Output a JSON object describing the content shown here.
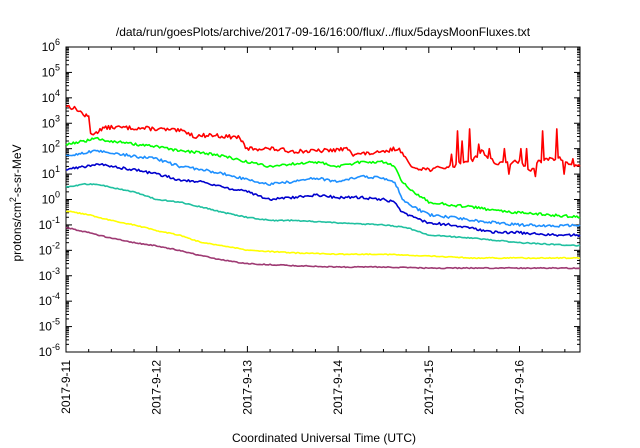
{
  "chart_data": {
    "type": "line",
    "title": "/data/run/goesPlots/archive/2017-09-16/16:00/flux/../flux/5daysMoonFluxes.txt",
    "xlabel": "Coordinated Universal Time (UTC)",
    "ylabel": {
      "pre": "protons/cm",
      "sup": "2",
      "post": "-s-sr-MeV"
    },
    "y_scale": "log",
    "ylim": [
      1e-06,
      1000000.0
    ],
    "xlim": [
      "2017-09-11 00:00",
      "2017-09-16 16:00"
    ],
    "y_tick_labels": [
      {
        "value": 1e-06,
        "base": "10",
        "exp": "-6"
      },
      {
        "value": 1e-05,
        "base": "10",
        "exp": "-5"
      },
      {
        "value": 0.0001,
        "base": "10",
        "exp": "-4"
      },
      {
        "value": 0.001,
        "base": "10",
        "exp": "-3"
      },
      {
        "value": 0.01,
        "base": "10",
        "exp": "-2"
      },
      {
        "value": 0.1,
        "base": "10",
        "exp": "-1"
      },
      {
        "value": 1.0,
        "base": "10",
        "exp": "0"
      },
      {
        "value": 10.0,
        "base": "10",
        "exp": "1"
      },
      {
        "value": 100.0,
        "base": "10",
        "exp": "2"
      },
      {
        "value": 1000.0,
        "base": "10",
        "exp": "3"
      },
      {
        "value": 10000.0,
        "base": "10",
        "exp": "4"
      },
      {
        "value": 100000.0,
        "base": "10",
        "exp": "5"
      },
      {
        "value": 1000000.0,
        "base": "10",
        "exp": "6"
      }
    ],
    "x_tick_labels": [
      "2017-9-11",
      "2017-9-12",
      "2017-9-13",
      "2017-9-14",
      "2017-9-15",
      "2017-9-16"
    ],
    "grid": false,
    "legend": "none",
    "series": [
      {
        "color": "#ff0000",
        "noise": "spiky",
        "points": [
          [
            "2017-09-11 00:00",
            5000
          ],
          [
            "2017-09-11 03:00",
            3500
          ],
          [
            "2017-09-11 05:00",
            2000
          ],
          [
            "2017-09-11 06:00",
            1800
          ],
          [
            "2017-09-11 06:30",
            400
          ],
          [
            "2017-09-11 08:00",
            400
          ],
          [
            "2017-09-11 09:00",
            600
          ],
          [
            "2017-09-11 12:00",
            700
          ],
          [
            "2017-09-11 18:00",
            650
          ],
          [
            "2017-09-12 00:00",
            600
          ],
          [
            "2017-09-12 06:00",
            500
          ],
          [
            "2017-09-12 08:00",
            450
          ],
          [
            "2017-09-12 10:00",
            300
          ],
          [
            "2017-09-12 14:00",
            350
          ],
          [
            "2017-09-12 18:00",
            300
          ],
          [
            "2017-09-12 22:00",
            280
          ],
          [
            "2017-09-12 23:30",
            100
          ],
          [
            "2017-09-13 06:00",
            100
          ],
          [
            "2017-09-13 12:00",
            80
          ],
          [
            "2017-09-13 18:00",
            80
          ],
          [
            "2017-09-14 00:00",
            90
          ],
          [
            "2017-09-14 03:00",
            100
          ],
          [
            "2017-09-14 04:00",
            60
          ],
          [
            "2017-09-14 12:00",
            70
          ],
          [
            "2017-09-14 15:00",
            100
          ],
          [
            "2017-09-14 17:00",
            80
          ],
          [
            "2017-09-14 19:00",
            20
          ],
          [
            "2017-09-15 00:00",
            15
          ],
          [
            "2017-09-15 06:00",
            20
          ],
          [
            "2017-09-15 12:00",
            40
          ],
          [
            "2017-09-15 14:00",
            80
          ],
          [
            "2017-09-15 18:00",
            25
          ],
          [
            "2017-09-16 00:00",
            30
          ],
          [
            "2017-09-16 03:00",
            15
          ],
          [
            "2017-09-16 05:00",
            30
          ],
          [
            "2017-09-16 08:00",
            40
          ],
          [
            "2017-09-16 11:00",
            40
          ],
          [
            "2017-09-16 13:00",
            25
          ],
          [
            "2017-09-16 16:00",
            20
          ]
        ],
        "spikes": [
          [
            "2017-09-15 06:00",
            60
          ],
          [
            "2017-09-15 07:30",
            500
          ],
          [
            "2017-09-15 09:00",
            200
          ],
          [
            "2017-09-15 11:00",
            600
          ],
          [
            "2017-09-15 13:00",
            150
          ],
          [
            "2017-09-15 16:00",
            100
          ],
          [
            "2017-09-15 20:00",
            100
          ],
          [
            "2017-09-15 21:00",
            10
          ],
          [
            "2017-09-16 00:30",
            100
          ],
          [
            "2017-09-16 02:00",
            100
          ],
          [
            "2017-09-16 04:00",
            8
          ],
          [
            "2017-09-16 06:00",
            500
          ],
          [
            "2017-09-16 10:00",
            600
          ],
          [
            "2017-09-16 12:00",
            10
          ],
          [
            "2017-09-16 14:00",
            40
          ]
        ]
      },
      {
        "color": "#00ff00",
        "noise": "medium",
        "points": [
          [
            "2017-09-11 00:00",
            150
          ],
          [
            "2017-09-11 05:00",
            200
          ],
          [
            "2017-09-11 08:00",
            250
          ],
          [
            "2017-09-11 12:00",
            200
          ],
          [
            "2017-09-11 18:00",
            150
          ],
          [
            "2017-09-12 00:00",
            120
          ],
          [
            "2017-09-12 06:00",
            80
          ],
          [
            "2017-09-12 12:00",
            70
          ],
          [
            "2017-09-12 18:00",
            50
          ],
          [
            "2017-09-13 00:00",
            30
          ],
          [
            "2017-09-13 06:00",
            20
          ],
          [
            "2017-09-13 12:00",
            25
          ],
          [
            "2017-09-13 18:00",
            30
          ],
          [
            "2017-09-14 00:00",
            20
          ],
          [
            "2017-09-14 06:00",
            30
          ],
          [
            "2017-09-14 12:00",
            30
          ],
          [
            "2017-09-14 15:00",
            20
          ],
          [
            "2017-09-14 17:00",
            5
          ],
          [
            "2017-09-14 20:00",
            2
          ],
          [
            "2017-09-15 00:00",
            0.8
          ],
          [
            "2017-09-15 06:00",
            0.6
          ],
          [
            "2017-09-15 12:00",
            0.5
          ],
          [
            "2017-09-15 18:00",
            0.35
          ],
          [
            "2017-09-16 00:00",
            0.3
          ],
          [
            "2017-09-16 08:00",
            0.25
          ],
          [
            "2017-09-16 16:00",
            0.2
          ]
        ]
      },
      {
        "color": "#1e90ff",
        "noise": "medium",
        "points": [
          [
            "2017-09-11 00:00",
            50
          ],
          [
            "2017-09-11 05:00",
            70
          ],
          [
            "2017-09-11 08:00",
            80
          ],
          [
            "2017-09-11 12:00",
            70
          ],
          [
            "2017-09-11 18:00",
            50
          ],
          [
            "2017-09-12 00:00",
            40
          ],
          [
            "2017-09-12 06:00",
            20
          ],
          [
            "2017-09-12 12:00",
            15
          ],
          [
            "2017-09-12 18:00",
            10
          ],
          [
            "2017-09-13 00:00",
            6
          ],
          [
            "2017-09-13 06:00",
            4
          ],
          [
            "2017-09-13 12:00",
            5
          ],
          [
            "2017-09-13 18:00",
            7
          ],
          [
            "2017-09-14 00:00",
            5
          ],
          [
            "2017-09-14 06:00",
            8
          ],
          [
            "2017-09-14 12:00",
            7
          ],
          [
            "2017-09-14 15:00",
            5
          ],
          [
            "2017-09-14 17:00",
            1
          ],
          [
            "2017-09-14 20:00",
            0.5
          ],
          [
            "2017-09-15 00:00",
            0.25
          ],
          [
            "2017-09-15 06:00",
            0.2
          ],
          [
            "2017-09-15 12:00",
            0.15
          ],
          [
            "2017-09-15 18:00",
            0.12
          ],
          [
            "2017-09-16 00:00",
            0.1
          ],
          [
            "2017-09-16 08:00",
            0.09
          ],
          [
            "2017-09-16 16:00",
            0.1
          ]
        ]
      },
      {
        "color": "#0000cd",
        "noise": "medium",
        "points": [
          [
            "2017-09-11 00:00",
            15
          ],
          [
            "2017-09-11 05:00",
            20
          ],
          [
            "2017-09-11 08:00",
            25
          ],
          [
            "2017-09-11 12:00",
            20
          ],
          [
            "2017-09-11 18:00",
            15
          ],
          [
            "2017-09-12 00:00",
            10
          ],
          [
            "2017-09-12 06:00",
            6
          ],
          [
            "2017-09-12 12:00",
            5
          ],
          [
            "2017-09-12 18:00",
            3
          ],
          [
            "2017-09-13 00:00",
            2
          ],
          [
            "2017-09-13 06:00",
            1
          ],
          [
            "2017-09-13 12:00",
            1.2
          ],
          [
            "2017-09-13 18:00",
            1.5
          ],
          [
            "2017-09-14 00:00",
            1.2
          ],
          [
            "2017-09-14 06:00",
            1.2
          ],
          [
            "2017-09-14 12:00",
            1
          ],
          [
            "2017-09-14 15:00",
            0.8
          ],
          [
            "2017-09-14 17:00",
            0.3
          ],
          [
            "2017-09-14 20:00",
            0.2
          ],
          [
            "2017-09-15 00:00",
            0.12
          ],
          [
            "2017-09-15 06:00",
            0.1
          ],
          [
            "2017-09-15 12:00",
            0.07
          ],
          [
            "2017-09-15 18:00",
            0.05
          ],
          [
            "2017-09-16 00:00",
            0.05
          ],
          [
            "2017-09-16 08:00",
            0.04
          ],
          [
            "2017-09-16 16:00",
            0.04
          ]
        ]
      },
      {
        "color": "#20c0a0",
        "noise": "low",
        "points": [
          [
            "2017-09-11 00:00",
            3
          ],
          [
            "2017-09-11 05:00",
            4
          ],
          [
            "2017-09-11 08:00",
            4
          ],
          [
            "2017-09-11 12:00",
            3
          ],
          [
            "2017-09-11 18:00",
            2
          ],
          [
            "2017-09-12 00:00",
            1
          ],
          [
            "2017-09-12 06:00",
            0.8
          ],
          [
            "2017-09-12 12:00",
            0.5
          ],
          [
            "2017-09-12 18:00",
            0.3
          ],
          [
            "2017-09-13 00:00",
            0.2
          ],
          [
            "2017-09-13 06:00",
            0.15
          ],
          [
            "2017-09-13 12:00",
            0.15
          ],
          [
            "2017-09-14 00:00",
            0.12
          ],
          [
            "2017-09-14 12:00",
            0.1
          ],
          [
            "2017-09-14 18:00",
            0.08
          ],
          [
            "2017-09-15 00:00",
            0.04
          ],
          [
            "2017-09-15 12:00",
            0.03
          ],
          [
            "2017-09-16 00:00",
            0.02
          ],
          [
            "2017-09-16 16:00",
            0.015
          ]
        ]
      },
      {
        "color": "#ffff00",
        "noise": "low",
        "points": [
          [
            "2017-09-11 00:00",
            0.35
          ],
          [
            "2017-09-11 06:00",
            0.25
          ],
          [
            "2017-09-11 12:00",
            0.15
          ],
          [
            "2017-09-11 18:00",
            0.1
          ],
          [
            "2017-09-12 00:00",
            0.06
          ],
          [
            "2017-09-12 06:00",
            0.04
          ],
          [
            "2017-09-12 12:00",
            0.02
          ],
          [
            "2017-09-12 18:00",
            0.015
          ],
          [
            "2017-09-13 00:00",
            0.01
          ],
          [
            "2017-09-13 12:00",
            0.008
          ],
          [
            "2017-09-14 00:00",
            0.007
          ],
          [
            "2017-09-14 12:00",
            0.007
          ],
          [
            "2017-09-15 00:00",
            0.006
          ],
          [
            "2017-09-15 12:00",
            0.005
          ],
          [
            "2017-09-16 00:00",
            0.005
          ],
          [
            "2017-09-16 16:00",
            0.005
          ]
        ]
      },
      {
        "color": "#9e3a73",
        "noise": "low",
        "points": [
          [
            "2017-09-11 00:00",
            0.08
          ],
          [
            "2017-09-11 06:00",
            0.05
          ],
          [
            "2017-09-11 12:00",
            0.03
          ],
          [
            "2017-09-11 18:00",
            0.02
          ],
          [
            "2017-09-12 00:00",
            0.015
          ],
          [
            "2017-09-12 06:00",
            0.01
          ],
          [
            "2017-09-12 12:00",
            0.006
          ],
          [
            "2017-09-12 18:00",
            0.004
          ],
          [
            "2017-09-13 00:00",
            0.003
          ],
          [
            "2017-09-13 12:00",
            0.0025
          ],
          [
            "2017-09-14 00:00",
            0.0022
          ],
          [
            "2017-09-14 12:00",
            0.0022
          ],
          [
            "2017-09-15 00:00",
            0.002
          ],
          [
            "2017-09-15 12:00",
            0.002
          ],
          [
            "2017-09-16 00:00",
            0.002
          ],
          [
            "2017-09-16 16:00",
            0.002
          ]
        ]
      }
    ]
  }
}
